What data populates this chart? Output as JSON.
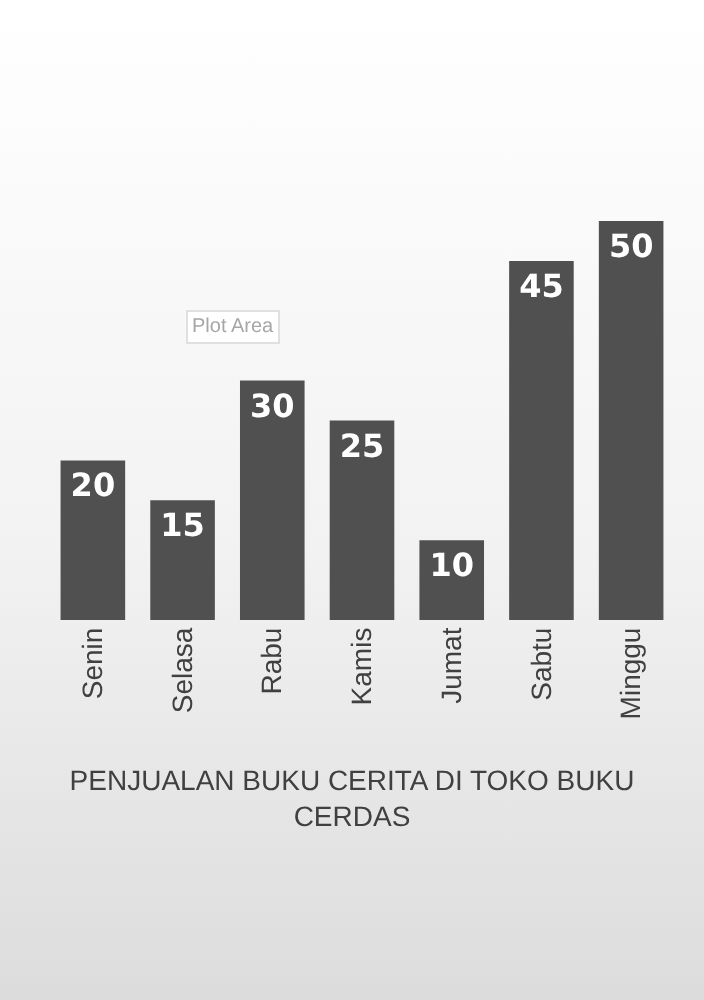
{
  "chart_data": {
    "type": "bar",
    "title": "PENJUALAN BUKU CERITA DI TOKO BUKU CERDAS",
    "categories": [
      "Senin",
      "Selasa",
      "Rabu",
      "Kamis",
      "Jumat",
      "Sabtu",
      "Minggu"
    ],
    "values": [
      20,
      15,
      30,
      25,
      10,
      45,
      50
    ],
    "color": "#505050",
    "data_labels": true,
    "annotations": [
      "Plot Area"
    ]
  }
}
